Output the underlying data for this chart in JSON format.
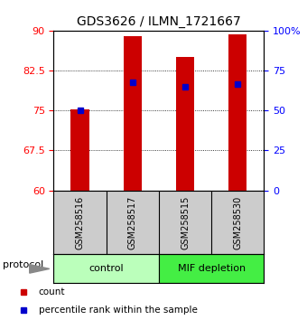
{
  "title": "GDS3626 / ILMN_1721667",
  "samples": [
    "GSM258516",
    "GSM258517",
    "GSM258515",
    "GSM258530"
  ],
  "bar_tops": [
    75.2,
    89.0,
    85.0,
    89.2
  ],
  "bar_bottom": 60,
  "percentile_values": [
    75.1,
    80.2,
    79.5,
    80.0
  ],
  "ylim_left": [
    60,
    90
  ],
  "ylim_right": [
    0,
    100
  ],
  "yticks_left": [
    60,
    67.5,
    75,
    82.5,
    90
  ],
  "ytick_labels_left": [
    "60",
    "67.5",
    "75",
    "82.5",
    "90"
  ],
  "yticks_right": [
    0,
    25,
    50,
    75,
    100
  ],
  "ytick_labels_right": [
    "0",
    "25",
    "50",
    "75",
    "100%"
  ],
  "bar_color": "#cc0000",
  "percentile_color": "#0000cc",
  "bar_width": 0.35,
  "groups": [
    {
      "label": "control",
      "positions": [
        0,
        1
      ],
      "color": "#bbffbb"
    },
    {
      "label": "MIF depletion",
      "positions": [
        2,
        3
      ],
      "color": "#44ee44"
    }
  ],
  "protocol_label": "protocol",
  "legend_items": [
    {
      "label": "count",
      "color": "#cc0000"
    },
    {
      "label": "percentile rank within the sample",
      "color": "#0000cc"
    }
  ],
  "sample_bg": "#cccccc",
  "group_border_color": "#000000"
}
